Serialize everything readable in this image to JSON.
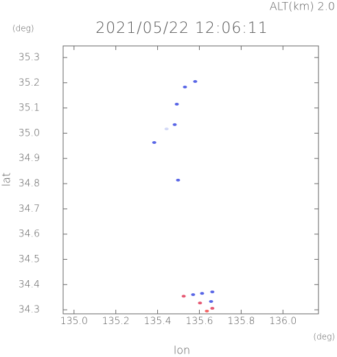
{
  "chart_data": {
    "type": "scatter",
    "title": "2021/05/22 12:06:11",
    "subtitle": "ALT(km) 2.0",
    "y_unit": "(deg)",
    "x_unit": "(deg)",
    "xlabel": "lon",
    "ylabel": "lat",
    "x": [
      135.531,
      135.58,
      135.492,
      135.443,
      135.482,
      135.384,
      135.498,
      135.525,
      135.57,
      135.613,
      135.662,
      135.603,
      135.656,
      135.636,
      135.662
    ],
    "y": [
      35.183,
      35.205,
      35.115,
      35.017,
      35.034,
      34.963,
      34.814,
      34.354,
      34.36,
      34.365,
      34.371,
      34.327,
      34.333,
      34.295,
      34.306
    ],
    "colors": [
      "#3040e0",
      "#3040e0",
      "#3040e0",
      "#c8d0f4",
      "#3040e0",
      "#3040e0",
      "#3040e0",
      "#e03050",
      "#3040e0",
      "#3040e0",
      "#3040e0",
      "#e03050",
      "#3040e0",
      "#f04040",
      "#e03050"
    ],
    "xlim": [
      134.948,
      136.17
    ],
    "ylim": [
      34.284,
      35.346
    ],
    "xticks": [
      {
        "value": 135,
        "label": "135.0"
      },
      135.2,
      135.4,
      135.6,
      135.8,
      {
        "value": 136,
        "label": "136.0"
      }
    ],
    "yticks": [
      34.3,
      34.4,
      34.5,
      34.6,
      34.7,
      34.8,
      34.9,
      {
        "value": 35,
        "label": "35.0"
      },
      35.1,
      35.2,
      35.3
    ],
    "grid": false
  }
}
